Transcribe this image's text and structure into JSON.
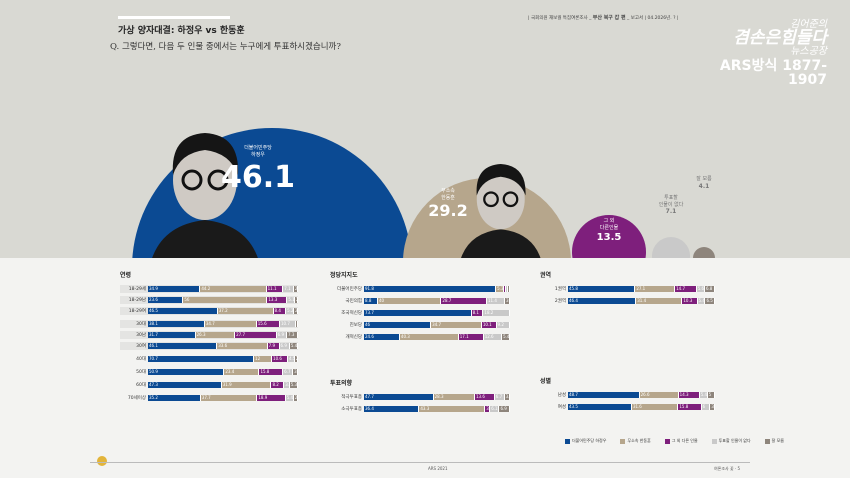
{
  "header": {
    "subtitle": "가상 양자대결: 하정우 vs 한동훈",
    "question": "Q. 그렇다면, 다음 두 인물 중에서는 누구에게 투표하시겠습니까?",
    "source_prefix": "국회의원 재보궐 특집여론조사",
    "source_bold": "부산 북구 갑 편",
    "source_suffix": "보고서",
    "source_date": "04.2026년. ?"
  },
  "logo": {
    "line1": "김어준의",
    "line2": "겸손은힘들다",
    "line3": "뉴스공장",
    "line4": "ARS방식 1877-1907"
  },
  "colors": {
    "blue": "#0b4a93",
    "tan": "#b6a68c",
    "purple": "#7e1f7c",
    "light": "#c9c9c9",
    "dark": "#8e857c"
  },
  "chart_data": [
    {
      "type": "bubble",
      "items": [
        {
          "party": "더불어민주당",
          "name": "하정우",
          "value": 46.1,
          "color": "blue"
        },
        {
          "party": "무소속",
          "name": "한동훈",
          "value": 29.2,
          "color": "tan"
        },
        {
          "party": "그 외",
          "name": "다른인물",
          "value": 13.5,
          "color": "purple"
        },
        {
          "party": "투표할",
          "name": "인물이 없다",
          "value": 7.1,
          "color": "light"
        },
        {
          "party": "잘 모름",
          "name": "",
          "value": 4.1,
          "color": "dark"
        }
      ]
    },
    {
      "type": "stacked-bar",
      "title": "연령",
      "rows": [
        {
          "label": "18-29세",
          "group": 1,
          "values": [
            34.9,
            44.2,
            11.1,
            7.1,
            2.7
          ]
        },
        {
          "label": "18-29남",
          "group": 1,
          "values": [
            23.6,
            56.0,
            13.3,
            5.1,
            2.0
          ]
        },
        {
          "label": "18-29여",
          "group": 1,
          "values": [
            46.5,
            37.2,
            8.4,
            5.2,
            2.7
          ]
        },
        {
          "label": "30대",
          "group": 2,
          "values": [
            38.1,
            34.7,
            15.6,
            10.7,
            1.0
          ]
        },
        {
          "label": "30남",
          "group": 2,
          "values": [
            31.7,
            26.3,
            27.7,
            6.9,
            7.3
          ]
        },
        {
          "label": "30여",
          "group": 2,
          "values": [
            46.1,
            33.6,
            7.9,
            6.9,
            5.4
          ]
        },
        {
          "label": "40대",
          "group": 0,
          "values": [
            70.7,
            12.0,
            10.6,
            4.5,
            2.2
          ]
        },
        {
          "label": "50대",
          "group": 0,
          "values": [
            50.9,
            23.4,
            15.8,
            6.7,
            3.2
          ]
        },
        {
          "label": "60대",
          "group": 0,
          "values": [
            47.3,
            31.9,
            8.2,
            3.5,
            5.3
          ]
        },
        {
          "label": "70세이상",
          "group": 0,
          "values": [
            35.2,
            37.7,
            18.9,
            5.4,
            2.8
          ]
        }
      ]
    },
    {
      "type": "stacked-bar",
      "title": "정당지지도",
      "rows": [
        {
          "label": "더불어민주당",
          "values": [
            91.8,
            5.3,
            1.5,
            0.5,
            0.9
          ]
        },
        {
          "label": "국민의힘",
          "values": [
            8.8,
            40.0,
            28.7,
            11.4,
            3.1
          ]
        },
        {
          "label": "조국혁신당",
          "values": [
            73.7,
            0,
            8.1,
            18.2,
            0
          ]
        },
        {
          "label": "진보당",
          "values": [
            46.0,
            34.7,
            10.1,
            9.2,
            0
          ]
        },
        {
          "label": "개혁신당",
          "values": [
            24.6,
            40.3,
            17.1,
            12.6,
            5.4
          ]
        }
      ]
    },
    {
      "type": "stacked-bar",
      "title": "투표의향",
      "rows": [
        {
          "label": "적극투표층",
          "values": [
            47.7,
            28.3,
            13.6,
            6.7,
            3.7
          ]
        },
        {
          "label": "소극투표층",
          "values": [
            36.4,
            43.3,
            3.3,
            6.1,
            6.9
          ]
        }
      ]
    },
    {
      "type": "stacked-bar",
      "title": "권역",
      "rows": [
        {
          "label": "1권역",
          "values": [
            45.8,
            27.1,
            14.7,
            5.6,
            6.8
          ]
        },
        {
          "label": "2권역",
          "values": [
            46.4,
            31.4,
            10.3,
            5.4,
            6.5
          ]
        }
      ]
    },
    {
      "type": "stacked-bar",
      "title": "성별",
      "rows": [
        {
          "label": "남성",
          "values": [
            48.7,
            26.6,
            14.3,
            5.4,
            5.0
          ]
        },
        {
          "label": "여성",
          "values": [
            43.5,
            31.6,
            15.8,
            6.0,
            3.1
          ]
        }
      ]
    }
  ],
  "legend": [
    "더불어민주당 하정우",
    "무소속 한동훈",
    "그 외 다른 인물",
    "투표할 인물이 없다",
    "잘 모름"
  ],
  "footer": {
    "center": "ARS 2021",
    "right": "여론조사 꽃 · 5"
  }
}
